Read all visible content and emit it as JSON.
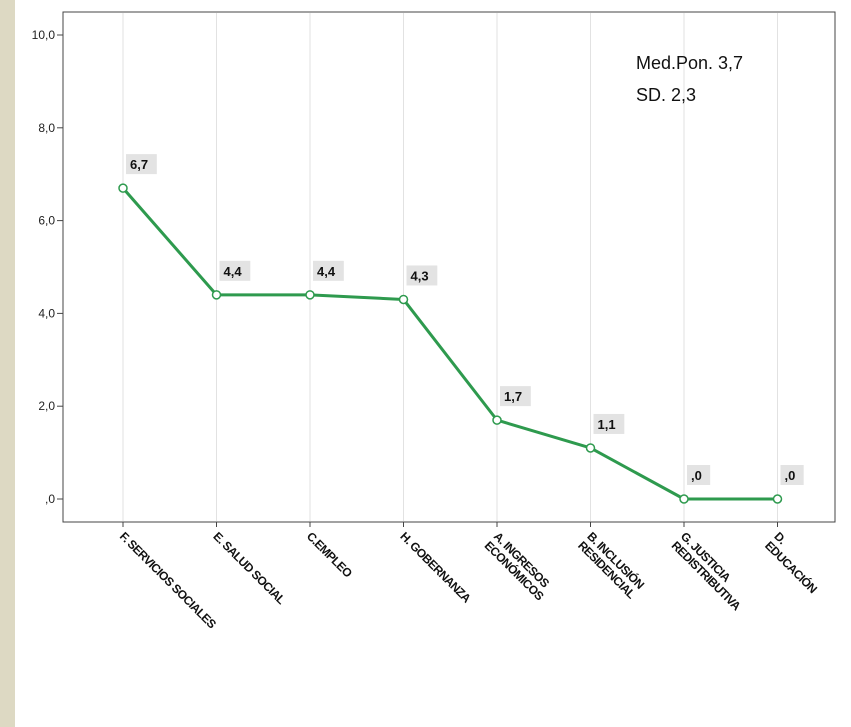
{
  "chart_data": {
    "type": "line",
    "categories": [
      [
        "F. SERVICIOS SOCIALES"
      ],
      [
        "E. SALUD SOCIAL"
      ],
      [
        "C.EMPLEO"
      ],
      [
        "H. GOBERNANZA"
      ],
      [
        "A. INGRESOS",
        "ECONÓMICOS"
      ],
      [
        "B. INCLUSIÓN",
        "RESIDENCIAL"
      ],
      [
        "G. JUSTICIA",
        "REDISTRIBUTIVA"
      ],
      [
        "D.",
        "EDUCACIÓN"
      ]
    ],
    "values": [
      6.7,
      4.4,
      4.4,
      4.3,
      1.7,
      1.1,
      0.0,
      0.0
    ],
    "data_labels": [
      "6,7",
      "4,4",
      "4,4",
      "4,3",
      "1,7",
      "1,1",
      ",0",
      ",0"
    ],
    "ylim": [
      0,
      10
    ],
    "yticks": [
      0,
      2,
      4,
      6,
      8,
      10
    ],
    "ytick_labels": [
      ",0",
      "2,0",
      "4,0",
      "6,0",
      "8,0",
      "10,0"
    ],
    "grid": "vertical",
    "line_color": "#2e9a4e",
    "annotation": [
      "Med.Pon. 3,7",
      "SD. 2,3"
    ]
  }
}
